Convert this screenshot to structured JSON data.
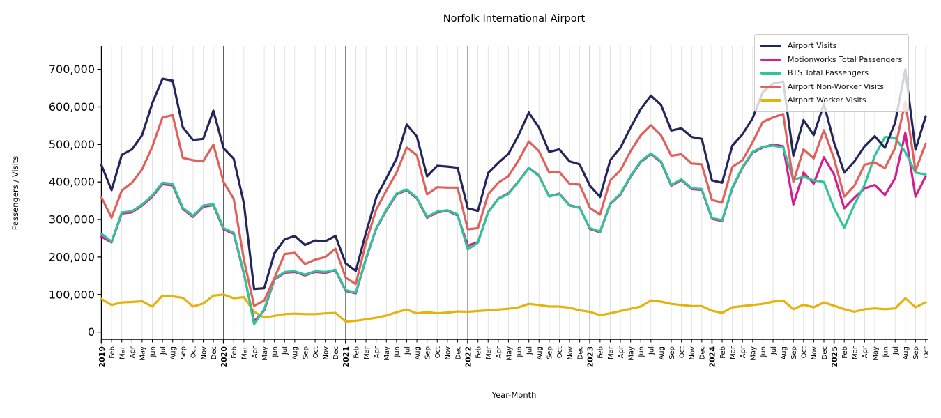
{
  "title": "Norfolk International Airport",
  "axes": {
    "xlabel": "Year-Month",
    "ylabel": "Passengers / Visits"
  },
  "chart_data": {
    "type": "line",
    "title": "Norfolk International Airport",
    "xlabel": "Year-Month",
    "ylabel": "Passengers / Visits",
    "legend_position": "upper right",
    "grid": "vertical gridline per month (light gray), darker vertical line at each January / year start",
    "ylim": [
      -20000,
      760000
    ],
    "yticks": [
      0,
      100000,
      200000,
      300000,
      400000,
      500000,
      600000,
      700000
    ],
    "ytick_labels": [
      "0",
      "100,000",
      "200,000",
      "300,000",
      "400,000",
      "500,000",
      "600,000",
      "700,000"
    ],
    "x_labels": [
      "2019",
      "Feb",
      "Mar",
      "Apr",
      "May",
      "Jun",
      "Jul",
      "Aug",
      "Sep",
      "Oct",
      "Nov",
      "Dec",
      "2020",
      "Feb",
      "Mar",
      "Apr",
      "May",
      "Jun",
      "Jul",
      "Aug",
      "Sep",
      "Oct",
      "Nov",
      "Dec",
      "2021",
      "Feb",
      "Mar",
      "Apr",
      "May",
      "Jun",
      "Jul",
      "Aug",
      "Sep",
      "Oct",
      "Nov",
      "Dec",
      "2022",
      "Feb",
      "Mar",
      "Apr",
      "May",
      "Jun",
      "Jul",
      "Aug",
      "Sep",
      "Oct",
      "Nov",
      "Dec",
      "2023",
      "Feb",
      "Mar",
      "Apr",
      "May",
      "Jun",
      "Jul",
      "Aug",
      "Sep",
      "Oct",
      "Nov",
      "Dec",
      "2024",
      "Feb",
      "Mar",
      "Apr",
      "May",
      "Jun",
      "Jul",
      "Aug",
      "Sep",
      "Oct",
      "Nov",
      "Dec",
      "2025",
      "Feb",
      "Mar",
      "Apr",
      "May",
      "Jun",
      "Jul",
      "Aug",
      "Sep",
      "Oct"
    ],
    "series": [
      {
        "name": "Airport Visits",
        "color": "#23265a",
        "values": [
          445000,
          378000,
          472000,
          487000,
          525000,
          610000,
          675000,
          670000,
          545000,
          512000,
          515000,
          590000,
          490000,
          462000,
          343000,
          115000,
          117000,
          210000,
          247000,
          256000,
          232000,
          244000,
          242000,
          256000,
          183000,
          163000,
          265000,
          358000,
          410000,
          462000,
          553000,
          521000,
          415000,
          443000,
          441000,
          438000,
          330000,
          323000,
          424000,
          451000,
          475000,
          525000,
          585000,
          545000,
          480000,
          487000,
          455000,
          447000,
          390000,
          360000,
          458000,
          491000,
          545000,
          594000,
          630000,
          605000,
          537000,
          543000,
          520000,
          515000,
          404000,
          398000,
          497000,
          527000,
          570000,
          640000,
          662000,
          668000,
          470000,
          565000,
          525000,
          608000,
          505000,
          425000,
          455000,
          495000,
          522000,
          491000,
          558000,
          700000,
          486000,
          575000
        ]
      },
      {
        "name": "Motionworks Total Passengers",
        "color": "#d11f8f",
        "values": [
          254000,
          239000,
          316000,
          319000,
          337000,
          361000,
          394000,
          391000,
          328000,
          307000,
          334000,
          338000,
          274000,
          262000,
          155000,
          28000,
          58000,
          140000,
          158000,
          160000,
          151000,
          160000,
          158000,
          164000,
          110000,
          103000,
          195000,
          275000,
          324000,
          367000,
          378000,
          356000,
          305000,
          319000,
          323000,
          311000,
          230000,
          240000,
          320000,
          356000,
          370000,
          402000,
          438000,
          417000,
          362000,
          369000,
          338000,
          332000,
          275000,
          266000,
          341000,
          366000,
          414000,
          453000,
          474000,
          453000,
          390000,
          405000,
          381000,
          379000,
          302000,
          296000,
          383000,
          438000,
          478000,
          492000,
          500000,
          495000,
          340000,
          425000,
          396000,
          466000,
          420000,
          330000,
          358000,
          383000,
          392000,
          365000,
          410000,
          531000,
          361000,
          415000
        ]
      },
      {
        "name": "BTS Total Passengers",
        "color": "#30c49b",
        "values": [
          262000,
          241000,
          319000,
          322000,
          340000,
          364000,
          398000,
          395000,
          331000,
          310000,
          337000,
          341000,
          277000,
          265000,
          158000,
          21000,
          61000,
          142000,
          160000,
          162000,
          153000,
          162000,
          160000,
          166000,
          112000,
          105000,
          197000,
          277000,
          326000,
          369000,
          380000,
          358000,
          307000,
          321000,
          325000,
          313000,
          220000,
          238000,
          319000,
          355000,
          368000,
          401000,
          437000,
          416000,
          361000,
          368000,
          337000,
          331000,
          277000,
          268000,
          343000,
          368000,
          416000,
          455000,
          476000,
          455000,
          392000,
          407000,
          383000,
          381000,
          304000,
          298000,
          385000,
          440000,
          480000,
          494000,
          497000,
          492000,
          406000,
          414000,
          404000,
          400000,
          330000,
          278000,
          340000,
          392000,
          470000,
          520000,
          518000,
          480000,
          425000,
          420000
        ]
      },
      {
        "name": "Airport Non-Worker Visits",
        "color": "#e0615b",
        "values": [
          359000,
          305000,
          377000,
          398000,
          434000,
          494000,
          572000,
          578000,
          464000,
          458000,
          455000,
          500000,
          400000,
          355000,
          193000,
          70000,
          84000,
          144000,
          208000,
          211000,
          181000,
          193000,
          200000,
          222000,
          145000,
          128000,
          239000,
          326000,
          377000,
          425000,
          492000,
          471000,
          367000,
          386000,
          385000,
          385000,
          274000,
          277000,
          367000,
          398000,
          416000,
          458000,
          508000,
          482000,
          425000,
          427000,
          395000,
          393000,
          331000,
          313000,
          404000,
          431000,
          482000,
          524000,
          551000,
          524000,
          470000,
          474000,
          449000,
          447000,
          352000,
          345000,
          440000,
          458000,
          506000,
          560000,
          572000,
          581000,
          400000,
          487000,
          463000,
          538000,
          462000,
          361000,
          390000,
          446000,
          452000,
          437000,
          491000,
          614000,
          430000,
          502000
        ]
      },
      {
        "name": "Airport Worker Visits",
        "color": "#e4b30e",
        "values": [
          88000,
          72000,
          79000,
          80000,
          82000,
          68000,
          97000,
          95000,
          91000,
          68000,
          76000,
          97000,
          100000,
          90000,
          93000,
          54000,
          39000,
          43000,
          48000,
          49000,
          48000,
          48000,
          50000,
          51000,
          28000,
          30000,
          34000,
          38000,
          44000,
          53000,
          60000,
          50000,
          53000,
          50000,
          52000,
          55000,
          54000,
          56000,
          58000,
          60000,
          62000,
          66000,
          75000,
          72000,
          68000,
          68000,
          65000,
          58000,
          54000,
          45000,
          50000,
          56000,
          62000,
          68000,
          84000,
          81000,
          75000,
          72000,
          69000,
          69000,
          57000,
          51000,
          66000,
          69000,
          72000,
          75000,
          81000,
          84000,
          61000,
          73000,
          66000,
          79000,
          70000,
          61000,
          54000,
          61000,
          63000,
          61000,
          63000,
          90000,
          66000,
          79000
        ]
      }
    ]
  }
}
